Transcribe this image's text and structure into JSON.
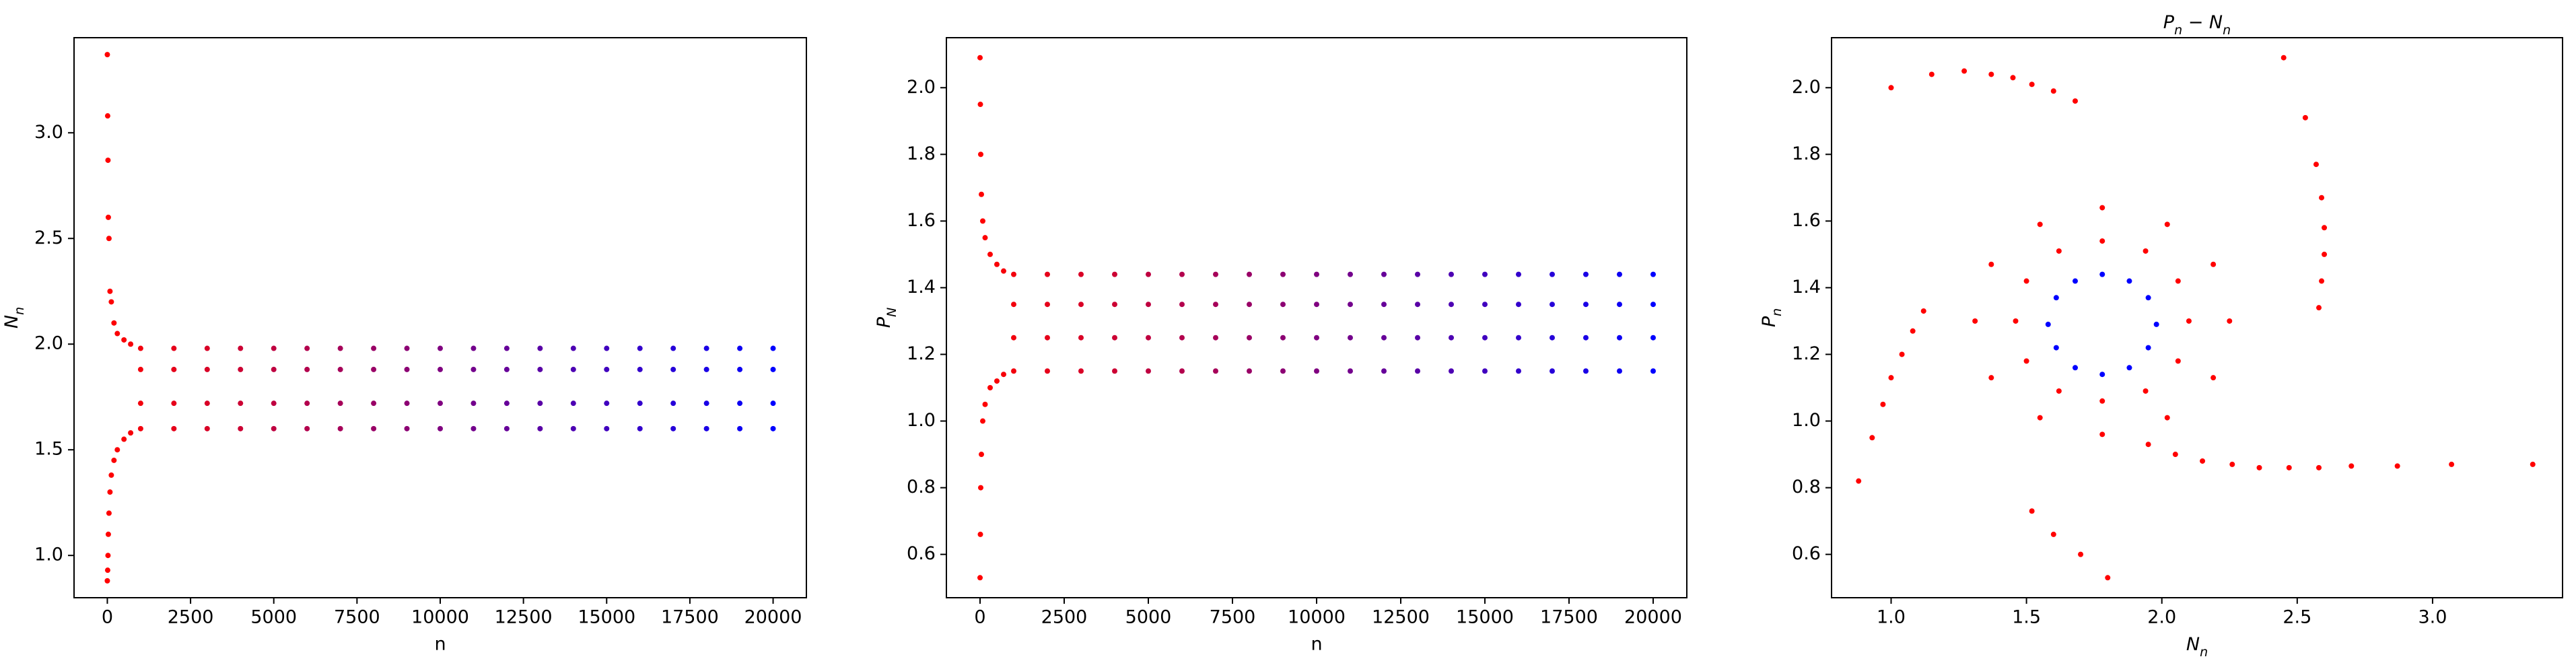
{
  "chart_data": [
    {
      "type": "scatter",
      "xlabel": "n",
      "ylabel": [
        "N",
        "n"
      ],
      "cmap": [
        "#ff0000",
        "#0000ff"
      ],
      "xlim": [
        -1000,
        21000
      ],
      "ylim": [
        0.8,
        3.45
      ],
      "xticks": [
        0,
        2500,
        5000,
        7500,
        10000,
        12500,
        15000,
        17500,
        20000
      ],
      "yticks": [
        {
          "value": 1,
          "label": "1.0"
        },
        1.5,
        {
          "value": 2,
          "label": "2.0"
        },
        2.5,
        {
          "value": 3,
          "label": "3.0"
        }
      ],
      "x": [
        0,
        0,
        10,
        10,
        20,
        20,
        30,
        30,
        50,
        50,
        80,
        80,
        120,
        120,
        200,
        200,
        300,
        300,
        500,
        500,
        700,
        700,
        1000,
        1000,
        1000,
        1000,
        2000,
        2000,
        2000,
        2000,
        3000,
        3000,
        3000,
        3000,
        4000,
        4000,
        4000,
        4000,
        5000,
        5000,
        5000,
        5000,
        6000,
        6000,
        6000,
        6000,
        7000,
        7000,
        7000,
        7000,
        8000,
        8000,
        8000,
        8000,
        9000,
        9000,
        9000,
        9000,
        10000,
        10000,
        10000,
        10000,
        11000,
        11000,
        11000,
        11000,
        12000,
        12000,
        12000,
        12000,
        13000,
        13000,
        13000,
        13000,
        14000,
        14000,
        14000,
        14000,
        15000,
        15000,
        15000,
        15000,
        16000,
        16000,
        16000,
        16000,
        17000,
        17000,
        17000,
        17000,
        18000,
        18000,
        18000,
        18000,
        19000,
        19000,
        19000,
        19000,
        20000,
        20000,
        20000,
        20000
      ],
      "values": [
        3.37,
        0.88,
        3.08,
        0.93,
        2.87,
        1.0,
        2.6,
        1.1,
        2.5,
        1.2,
        2.25,
        1.3,
        2.2,
        1.38,
        2.1,
        1.45,
        2.05,
        1.5,
        2.02,
        1.55,
        2.0,
        1.58,
        1.6,
        1.72,
        1.88,
        1.98,
        1.6,
        1.72,
        1.88,
        1.98,
        1.6,
        1.72,
        1.88,
        1.98,
        1.6,
        1.72,
        1.88,
        1.98,
        1.6,
        1.72,
        1.88,
        1.98,
        1.6,
        1.72,
        1.88,
        1.98,
        1.6,
        1.72,
        1.88,
        1.98,
        1.6,
        1.72,
        1.88,
        1.98,
        1.6,
        1.72,
        1.88,
        1.98,
        1.6,
        1.72,
        1.88,
        1.98,
        1.6,
        1.72,
        1.88,
        1.98,
        1.6,
        1.72,
        1.88,
        1.98,
        1.6,
        1.72,
        1.88,
        1.98,
        1.6,
        1.72,
        1.88,
        1.98,
        1.6,
        1.72,
        1.88,
        1.98,
        1.6,
        1.72,
        1.88,
        1.98,
        1.6,
        1.72,
        1.88,
        1.98,
        1.6,
        1.72,
        1.88,
        1.98,
        1.6,
        1.72,
        1.88,
        1.98,
        1.6,
        1.72,
        1.88,
        1.98
      ]
    },
    {
      "type": "scatter",
      "xlabel": "n",
      "ylabel": [
        "P",
        "N"
      ],
      "cmap": [
        "#ff0000",
        "#0000ff"
      ],
      "xlim": [
        -1000,
        21000
      ],
      "ylim": [
        0.47,
        2.15
      ],
      "xticks": [
        0,
        2500,
        5000,
        7500,
        10000,
        12500,
        15000,
        17500,
        20000
      ],
      "yticks": [
        0.6,
        0.8,
        {
          "value": 1,
          "label": "1.0"
        },
        1.2,
        1.4,
        1.6,
        1.8,
        {
          "value": 2,
          "label": "2.0"
        }
      ],
      "x": [
        0,
        0,
        10,
        10,
        20,
        20,
        40,
        40,
        80,
        80,
        150,
        150,
        300,
        300,
        500,
        500,
        700,
        700,
        1000,
        1000,
        1000,
        1000,
        2000,
        2000,
        2000,
        2000,
        3000,
        3000,
        3000,
        3000,
        4000,
        4000,
        4000,
        4000,
        5000,
        5000,
        5000,
        5000,
        6000,
        6000,
        6000,
        6000,
        7000,
        7000,
        7000,
        7000,
        8000,
        8000,
        8000,
        8000,
        9000,
        9000,
        9000,
        9000,
        10000,
        10000,
        10000,
        10000,
        11000,
        11000,
        11000,
        11000,
        12000,
        12000,
        12000,
        12000,
        13000,
        13000,
        13000,
        13000,
        14000,
        14000,
        14000,
        14000,
        15000,
        15000,
        15000,
        15000,
        16000,
        16000,
        16000,
        16000,
        17000,
        17000,
        17000,
        17000,
        18000,
        18000,
        18000,
        18000,
        19000,
        19000,
        19000,
        19000,
        20000,
        20000,
        20000,
        20000
      ],
      "values": [
        2.09,
        0.53,
        1.95,
        0.66,
        1.8,
        0.8,
        1.68,
        0.9,
        1.6,
        1.0,
        1.55,
        1.05,
        1.5,
        1.1,
        1.47,
        1.12,
        1.45,
        1.14,
        1.15,
        1.25,
        1.35,
        1.44,
        1.15,
        1.25,
        1.35,
        1.44,
        1.15,
        1.25,
        1.35,
        1.44,
        1.15,
        1.25,
        1.35,
        1.44,
        1.15,
        1.25,
        1.35,
        1.44,
        1.15,
        1.25,
        1.35,
        1.44,
        1.15,
        1.25,
        1.35,
        1.44,
        1.15,
        1.25,
        1.35,
        1.44,
        1.15,
        1.25,
        1.35,
        1.44,
        1.15,
        1.25,
        1.35,
        1.44,
        1.15,
        1.25,
        1.35,
        1.44,
        1.15,
        1.25,
        1.35,
        1.44,
        1.15,
        1.25,
        1.35,
        1.44,
        1.15,
        1.25,
        1.35,
        1.44,
        1.15,
        1.25,
        1.35,
        1.44,
        1.15,
        1.25,
        1.35,
        1.44,
        1.15,
        1.25,
        1.35,
        1.44,
        1.15,
        1.25,
        1.35,
        1.44,
        1.15,
        1.25,
        1.35,
        1.44,
        1.15,
        1.25,
        1.35,
        1.44
      ]
    },
    {
      "type": "scatter",
      "title": [
        "P",
        "n",
        " − N",
        "n"
      ],
      "xlabel": [
        "N",
        "n"
      ],
      "ylabel": [
        "P",
        "n"
      ],
      "xlim": [
        0.78,
        3.48
      ],
      "ylim": [
        0.47,
        2.15
      ],
      "xticks": [
        {
          "value": 1,
          "label": "1.0"
        },
        1.5,
        {
          "value": 2,
          "label": "2.0"
        },
        2.5,
        {
          "value": 3,
          "label": "3.0"
        }
      ],
      "yticks": [
        0.6,
        0.8,
        {
          "value": 1,
          "label": "1.0"
        },
        1.2,
        1.4,
        1.6,
        1.8,
        {
          "value": 2,
          "label": "2.0"
        }
      ],
      "series": [
        {
          "color": "#ff0000",
          "x": [
            3.37,
            3.07,
            2.87,
            2.7,
            2.58,
            2.47,
            2.36,
            2.26,
            2.15,
            2.05,
            1.95,
            0.88,
            0.93,
            0.97,
            1.0,
            1.04,
            1.08,
            1.12,
            1.0,
            1.15,
            1.27,
            1.37,
            1.45,
            1.52,
            1.6,
            1.68,
            2.45,
            2.53,
            2.57,
            2.59,
            2.6,
            2.6,
            2.59,
            2.58,
            1.8,
            1.7,
            1.6,
            1.52,
            2.25,
            2.19,
            2.02,
            1.78,
            1.55,
            1.37,
            1.31,
            1.37,
            1.55,
            1.78,
            2.02,
            2.19,
            2.1,
            2.06,
            1.94,
            1.78,
            1.62,
            1.5,
            1.46,
            1.5,
            1.62,
            1.78,
            1.94,
            2.06
          ],
          "values": [
            0.87,
            0.87,
            0.865,
            0.865,
            0.86,
            0.86,
            0.86,
            0.87,
            0.88,
            0.9,
            0.93,
            0.82,
            0.95,
            1.05,
            1.13,
            1.2,
            1.27,
            1.33,
            2.0,
            2.04,
            2.05,
            2.04,
            2.03,
            2.01,
            1.99,
            1.96,
            2.09,
            1.91,
            1.77,
            1.67,
            1.58,
            1.5,
            1.42,
            1.34,
            0.53,
            0.6,
            0.66,
            0.73,
            1.3,
            1.47,
            1.59,
            1.64,
            1.59,
            1.47,
            1.3,
            1.13,
            1.01,
            0.96,
            1.01,
            1.13,
            1.3,
            1.42,
            1.51,
            1.54,
            1.51,
            1.42,
            1.3,
            1.18,
            1.09,
            1.06,
            1.09,
            1.18
          ]
        },
        {
          "color": "#0000ff",
          "x": [
            1.98,
            1.95,
            1.88,
            1.78,
            1.68,
            1.61,
            1.58,
            1.61,
            1.68,
            1.78,
            1.88,
            1.95
          ],
          "values": [
            1.29,
            1.37,
            1.42,
            1.44,
            1.42,
            1.37,
            1.29,
            1.22,
            1.16,
            1.14,
            1.16,
            1.22
          ]
        }
      ]
    }
  ]
}
